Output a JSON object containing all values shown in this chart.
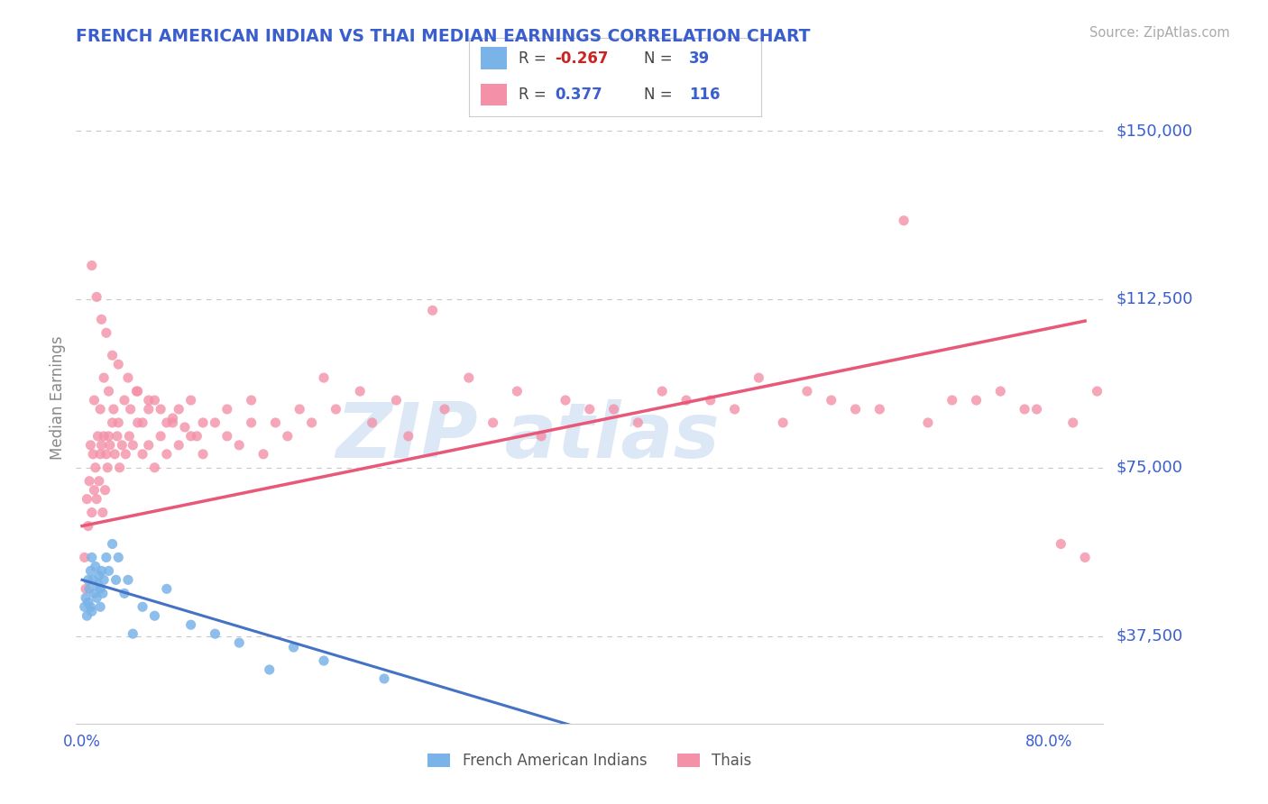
{
  "title": "FRENCH AMERICAN INDIAN VS THAI MEDIAN EARNINGS CORRELATION CHART",
  "source": "Source: ZipAtlas.com",
  "ylabel": "Median Earnings",
  "blue_color": "#7ab3e8",
  "pink_color": "#f490a8",
  "title_color": "#3a5fcd",
  "axis_label_color": "#3a5fcd",
  "ytick_color": "#3a5fcd",
  "background_color": "#ffffff",
  "grid_color": "#c8c8c8",
  "blue_trend_color": "#4472c4",
  "pink_trend_color": "#e85878",
  "ymin": 18000,
  "ymax": 163000,
  "xmin": -0.005,
  "xmax": 0.845,
  "ytick_positions": [
    37500,
    75000,
    112500,
    150000
  ],
  "ytick_labels": [
    "$37,500",
    "$75,000",
    "$112,500",
    "$150,000"
  ],
  "blue_scatter_x": [
    0.002,
    0.003,
    0.004,
    0.005,
    0.005,
    0.006,
    0.007,
    0.007,
    0.008,
    0.008,
    0.009,
    0.01,
    0.011,
    0.012,
    0.013,
    0.014,
    0.015,
    0.015,
    0.016,
    0.017,
    0.018,
    0.02,
    0.022,
    0.025,
    0.028,
    0.03,
    0.035,
    0.038,
    0.042,
    0.05,
    0.06,
    0.07,
    0.09,
    0.11,
    0.13,
    0.155,
    0.175,
    0.2,
    0.25
  ],
  "blue_scatter_y": [
    44000,
    46000,
    42000,
    50000,
    45000,
    48000,
    52000,
    44000,
    55000,
    43000,
    50000,
    47000,
    53000,
    46000,
    49000,
    51000,
    48000,
    44000,
    52000,
    47000,
    50000,
    55000,
    52000,
    58000,
    50000,
    55000,
    47000,
    50000,
    38000,
    44000,
    42000,
    48000,
    40000,
    38000,
    36000,
    30000,
    35000,
    32000,
    28000
  ],
  "pink_scatter_x": [
    0.002,
    0.003,
    0.004,
    0.005,
    0.006,
    0.007,
    0.008,
    0.009,
    0.01,
    0.011,
    0.012,
    0.013,
    0.014,
    0.015,
    0.016,
    0.017,
    0.018,
    0.019,
    0.02,
    0.021,
    0.022,
    0.023,
    0.025,
    0.027,
    0.029,
    0.031,
    0.033,
    0.036,
    0.039,
    0.042,
    0.046,
    0.05,
    0.055,
    0.06,
    0.065,
    0.07,
    0.075,
    0.08,
    0.09,
    0.1,
    0.11,
    0.12,
    0.13,
    0.14,
    0.15,
    0.17,
    0.19,
    0.21,
    0.24,
    0.27,
    0.3,
    0.34,
    0.38,
    0.42,
    0.46,
    0.5,
    0.54,
    0.58,
    0.62,
    0.66,
    0.7,
    0.74,
    0.78,
    0.81,
    0.83,
    0.01,
    0.015,
    0.018,
    0.022,
    0.026,
    0.03,
    0.035,
    0.04,
    0.045,
    0.05,
    0.055,
    0.06,
    0.07,
    0.08,
    0.09,
    0.1,
    0.12,
    0.14,
    0.16,
    0.18,
    0.2,
    0.23,
    0.26,
    0.29,
    0.32,
    0.36,
    0.4,
    0.44,
    0.48,
    0.52,
    0.56,
    0.6,
    0.64,
    0.68,
    0.72,
    0.76,
    0.79,
    0.82,
    0.84,
    0.008,
    0.012,
    0.016,
    0.02,
    0.025,
    0.03,
    0.038,
    0.046,
    0.055,
    0.065,
    0.075,
    0.085,
    0.095
  ],
  "pink_scatter_y": [
    55000,
    48000,
    68000,
    62000,
    72000,
    80000,
    65000,
    78000,
    70000,
    75000,
    68000,
    82000,
    72000,
    78000,
    80000,
    65000,
    82000,
    70000,
    78000,
    75000,
    82000,
    80000,
    85000,
    78000,
    82000,
    75000,
    80000,
    78000,
    82000,
    80000,
    85000,
    78000,
    80000,
    75000,
    82000,
    78000,
    85000,
    80000,
    82000,
    78000,
    85000,
    82000,
    80000,
    85000,
    78000,
    82000,
    85000,
    88000,
    85000,
    82000,
    88000,
    85000,
    82000,
    88000,
    85000,
    90000,
    88000,
    85000,
    90000,
    88000,
    85000,
    90000,
    88000,
    58000,
    55000,
    90000,
    88000,
    95000,
    92000,
    88000,
    85000,
    90000,
    88000,
    92000,
    85000,
    88000,
    90000,
    85000,
    88000,
    90000,
    85000,
    88000,
    90000,
    85000,
    88000,
    95000,
    92000,
    90000,
    110000,
    95000,
    92000,
    90000,
    88000,
    92000,
    90000,
    95000,
    92000,
    88000,
    130000,
    90000,
    92000,
    88000,
    85000,
    92000,
    120000,
    113000,
    108000,
    105000,
    100000,
    98000,
    95000,
    92000,
    90000,
    88000,
    86000,
    84000,
    82000
  ]
}
